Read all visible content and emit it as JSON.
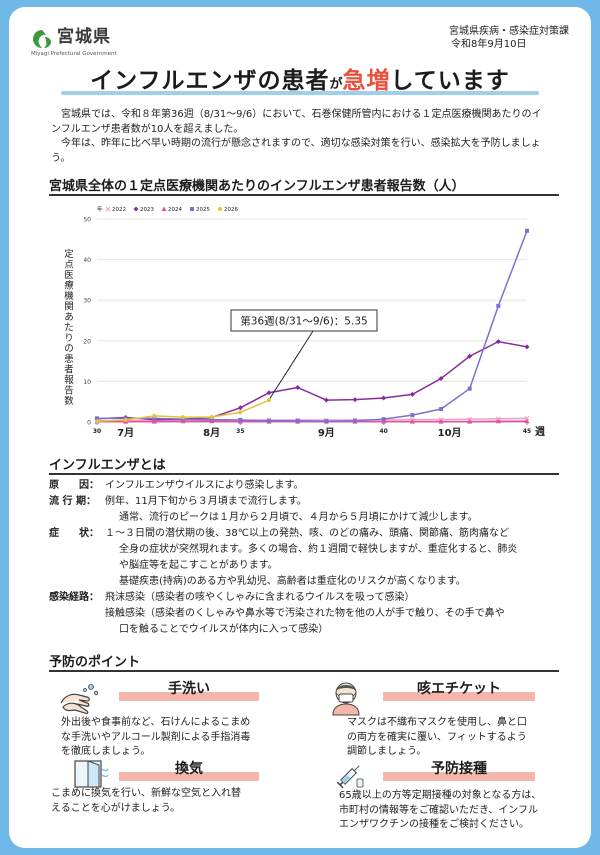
{
  "header": {
    "logo_text": "宮城県",
    "logo_sub": "Miyagi Prefectural Government",
    "dept_lines": [
      "宮城県疾病・感染症対策課",
      "令和8年9月10日"
    ]
  },
  "headline": {
    "part1": "インフルエンザの患者",
    "part2": "が",
    "part3": "急増",
    "part4": "しています"
  },
  "intro": {
    "p1": "宮城県では、令和８年第36週（8/31～9/6）において、石巻保健所管内における１定点医療機関あたりのインフルエンザ患者数が10人を超えました。",
    "p2": "今年は、昨年に比べ早い時期の流行が懸念されますので、適切な感染対策を行い、感染拡大を予防しましょう。"
  },
  "chart_section_title": "宮城県全体の１定点医療機関あたりのインフルエンザ患者報告数（人）",
  "chart_data": {
    "type": "line",
    "ylabel": "定点医療機関あたりの患者報告数",
    "xlabel": "週",
    "ylim": [
      0,
      50
    ],
    "yticks": [
      0,
      10,
      20,
      30,
      40,
      50
    ],
    "xlim": [
      30,
      45
    ],
    "week_ticks": [
      "30",
      "35",
      "40",
      "45"
    ],
    "month_labels": [
      {
        "label": "7月",
        "week": 31
      },
      {
        "label": "8月",
        "week": 34
      },
      {
        "label": "9月",
        "week": 38
      },
      {
        "label": "10月",
        "week": 42.3
      }
    ],
    "legend_prefix": "年",
    "series": [
      {
        "name": "2022",
        "color": "#f2a1c5",
        "marker": "x",
        "x": [
          30,
          31,
          32,
          33,
          34,
          35,
          36,
          37,
          38,
          39,
          40,
          41,
          42,
          43,
          44,
          45
        ],
        "y": [
          0.3,
          0.3,
          0.3,
          0.4,
          0.4,
          0.4,
          0.5,
          0.5,
          0.5,
          0.5,
          0.5,
          0.6,
          0.6,
          0.7,
          0.8,
          0.9
        ]
      },
      {
        "name": "2023",
        "color": "#8a2aa0",
        "marker": "diamond",
        "x": [
          30,
          31,
          32,
          33,
          34,
          35,
          36,
          37,
          38,
          39,
          40,
          41,
          42,
          43,
          44,
          45
        ],
        "y": [
          0.8,
          1.1,
          0.6,
          0.7,
          1.1,
          3.5,
          7.2,
          8.5,
          5.4,
          5.5,
          5.9,
          6.8,
          10.7,
          16.2,
          19.8,
          18.5
        ]
      },
      {
        "name": "2024",
        "color": "#e84fa0",
        "marker": "triangle",
        "x": [
          30,
          31,
          32,
          33,
          34,
          35,
          36,
          37,
          38,
          39,
          40,
          41,
          42,
          43,
          44,
          45
        ],
        "y": [
          0.1,
          0.1,
          0.1,
          0.2,
          0.2,
          0.1,
          0.1,
          0.1,
          0.1,
          0.1,
          0.1,
          0.1,
          0.1,
          0.1,
          0.2,
          0.2
        ]
      },
      {
        "name": "2025",
        "color": "#7f6fd0",
        "marker": "square",
        "x": [
          30,
          31,
          32,
          33,
          34,
          35,
          36,
          37,
          38,
          39,
          40,
          41,
          42,
          43,
          44,
          45
        ],
        "y": [
          0.9,
          0.9,
          0.9,
          0.7,
          0.6,
          0.5,
          0.3,
          0.3,
          0.2,
          0.3,
          0.7,
          1.7,
          3.2,
          8.2,
          28.6,
          47.1
        ]
      },
      {
        "name": "2026",
        "color": "#e2c43c",
        "marker": "circle",
        "x": [
          30,
          31,
          32,
          33,
          34,
          35,
          36
        ],
        "y": [
          0.2,
          0.5,
          1.5,
          1.2,
          1.2,
          2.4,
          5.35
        ]
      }
    ],
    "annotation": {
      "text": "第36週(8/31～9/6)：5.35",
      "x": 36,
      "y": 5.35
    }
  },
  "about": {
    "title": "インフルエンザとは",
    "rows": [
      {
        "label": "原　　因",
        "lines": [
          "インフルエンザウイルスにより感染します。"
        ]
      },
      {
        "label": "流 行 期",
        "lines": [
          "例年、11月下旬から３月頃まで流行します。",
          "通常、流行のピークは１月から２月頃で、４月から５月頃にかけて減少します。"
        ]
      },
      {
        "label": "症　　状",
        "lines": [
          "１～３日間の潜伏期の後、38℃以上の発熱、咳、のどの痛み、頭痛、関節痛、筋肉痛など",
          "全身の症状が突然現れます。多くの場合、約１週間で軽快しますが、重症化すると、肺炎",
          "や脳症等を起こすことがあります。",
          "基礎疾患(持病)のある方や乳幼児、高齢者は重症化のリスクが高くなります。"
        ]
      },
      {
        "label": "感染経路",
        "lines": [
          "飛沫感染（感染者の咳やくしゃみに含まれるウイルスを吸って感染）",
          "接触感染（感染者のくしゃみや鼻水等で汚染された物を他の人が手で触り、その手で鼻や",
          "口を触ることでウイルスが体内に入って感染）"
        ]
      }
    ]
  },
  "prevention": {
    "title": "予防のポイント",
    "tips": [
      {
        "title": "手洗い",
        "text": [
          "外出後や食事前など、石けんによるこまめ",
          "な手洗いやアルコール製剤による手指消毒",
          "を徹底しましょう。"
        ]
      },
      {
        "title": "咳エチケット",
        "text": [
          "マスクは不織布マスクを使用し、鼻と口",
          "の両方を確実に覆い、フィットするよう",
          "調節しましょう。"
        ]
      },
      {
        "title": "換気",
        "text": [
          "こまめに換気を行い、新鮮な空気と入れ替",
          "えることを心がけましょう。"
        ]
      },
      {
        "title": "予防接種",
        "text": [
          "65歳以上の方等定期接種の対象となる方は、",
          "市町村の情報等をご確認いただき、インフル",
          "エンザワクチンの接種をご検討ください。"
        ]
      }
    ]
  }
}
